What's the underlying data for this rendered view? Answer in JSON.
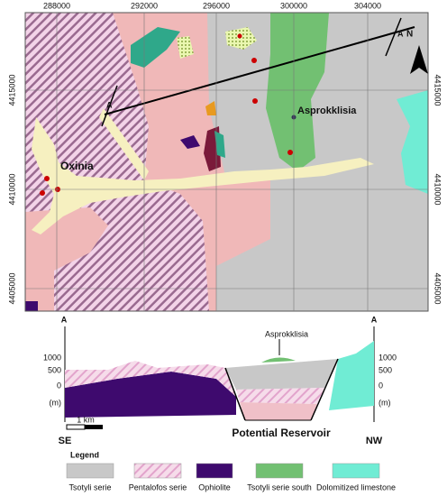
{
  "map": {
    "x_ticks": [
      "288000",
      "292000",
      "296000",
      "300000",
      "304000"
    ],
    "y_ticks": [
      "4415000",
      "4410000",
      "4405000"
    ],
    "section_start": "A",
    "section_end": "A",
    "north": "N",
    "town_east": "Asprokklisia",
    "town_west": "Oxinia"
  },
  "section": {
    "left_end": "A",
    "right_end": "A",
    "elevations": [
      "1000",
      "500",
      "0",
      "(m)"
    ],
    "left_dir": "SE",
    "right_dir": "NW",
    "scale": "1 km",
    "reservoir": "Potential Reservoir",
    "town": "Asprokklisia"
  },
  "legend": {
    "title": "Legend",
    "items": [
      {
        "label": "Tsotyli serie",
        "color": "#c8c8c8"
      },
      {
        "label": "Pentalofos serie",
        "color": "#f0c0c8"
      },
      {
        "label": "Ophiolite",
        "color": "#3e0a6e"
      },
      {
        "label": "Tsotyli serie south",
        "color": "#72c072"
      },
      {
        "label": "Dolomitized limestone",
        "color": "#70ecd4"
      }
    ]
  }
}
